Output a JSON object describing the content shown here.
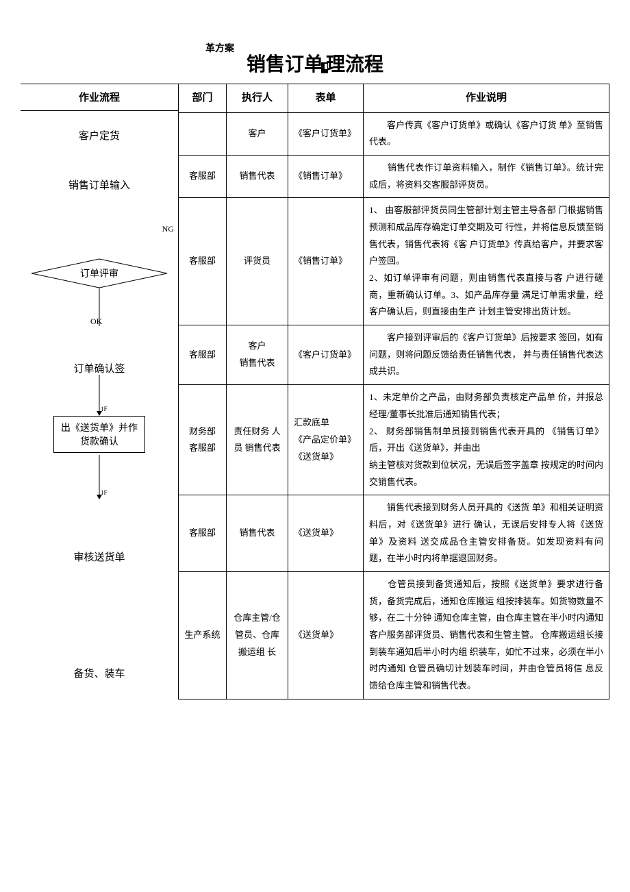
{
  "header_small": "革方案",
  "title_part1": "销售订单",
  "title_part2": "理流程",
  "flow_header": "作业流程",
  "columns": {
    "dept": "部门",
    "exec": "执行人",
    "form": "表单",
    "desc": "作业说明"
  },
  "flow": {
    "step1": "客户定货",
    "step2": "销售订单输入",
    "ng": "NG",
    "ok": "OK",
    "decision": "订单评审",
    "step4": "订单确认签",
    "step5_line1": "出《送货单》并作",
    "step5_line2": "货款确认",
    "step6": "审核送货单",
    "step7": "备货、装车",
    "tick": "1F"
  },
  "rows": [
    {
      "dept": "",
      "exec": "客户",
      "form": "《客户订货单》",
      "desc_lines": [
        "　　客户传真《客户订货单》或确认《客户订货 单》至销售代表。"
      ]
    },
    {
      "dept": "客服部",
      "exec": "销售代表",
      "form": "《销售订单》",
      "desc_lines": [
        "　　销售代表作订单资料输入，制作《销售订单》。统计完成后，将资料交客服部评货员。"
      ]
    },
    {
      "dept": "客服部",
      "exec": "评货员",
      "form": "《销售订单》",
      "desc_lines": [
        "1、 由客服部评货员同生管部计划主管主导各部 门根据销售预测和成品库存确定订单交期及可 行性，并将信息反馈至销售代表，销售代表将《客 户订货单》传真给客户，并要求客户签回。",
        "2、如订单评审有问题，则由销售代表直接与客 户进行磋商，重新确认订单。3、如产品库存量 满足订单需求量，经客户确认后，则直接由生产 计划主管安排出货计划。"
      ]
    },
    {
      "dept": "客服部",
      "exec": "客户\n销售代表",
      "form": "《客户订货单》",
      "desc_lines": [
        "　　客户接到评审后的《客户订货单》后按要求 签回，如有问题，则将问题反馈给责任销售代表， 并与责任销售代表达成共识。"
      ]
    },
    {
      "dept": "财务部\n客服部",
      "exec": "责任财务 人员 销售代表",
      "form": "汇款底单\n《产品定价单》《送货单》",
      "desc_lines": [
        "1、未定单价之产品，由财务部负责核定产品单 价，并报总经理/董事长批准后通知销售代表；",
        "2、 财务部销售制单员接到销售代表开具的 《销售订单》后，开出《送货单》，并由出",
        "纳主管核对货款到位状况，无误后签字盖章 按规定的时间内交销售代表。"
      ]
    },
    {
      "dept": "客服部",
      "exec": "销售代表",
      "form": "《送货单》",
      "desc_lines": [
        "　　销售代表接到财务人员开具的《送货 单》和相关证明资料后，对《送货单》进行 确认，无误后安排专人将《送货单》及资料 送交成品仓主管安排备货。如发现资料有问 题，在半小时内将单据退回财务。"
      ]
    },
    {
      "dept": "生产系统",
      "exec": "仓库主管/仓管员、仓库搬运组 长",
      "form": "《送货单》",
      "desc_lines": [
        "　　仓管员接到备货通知后，按照《送货单》要求进行备货，备货完成后，通知仓库搬运 组按排装车。如货物数量不够，在二十分钟 通知仓库主管，由仓库主管在半小时内通知 客户服务部评货员、销售代表和生管主管。 仓库搬运组长接到装车通知后半小时内组 织装车，如忙不过来，必须在半小时内通知 仓管员确切计划装车时间，并由仓管员将信 息反馈给仓库主管和销售代表。"
      ]
    }
  ],
  "style": {
    "page_bg": "#ffffff",
    "border_color": "#000000",
    "text_color": "#000000",
    "title_fontsize": 28,
    "body_fontsize": 13,
    "header_fontsize": 15
  }
}
